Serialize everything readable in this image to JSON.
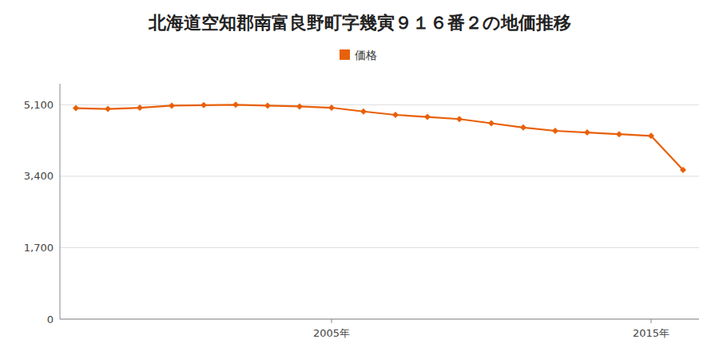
{
  "chart_data": {
    "type": "line",
    "title": "北海道空知郡南富良野町字幾寅９１６番２の地価推移",
    "x": [
      1997,
      1998,
      1999,
      2000,
      2001,
      2002,
      2003,
      2004,
      2005,
      2006,
      2007,
      2008,
      2009,
      2010,
      2011,
      2012,
      2013,
      2014,
      2015,
      2016
    ],
    "series": [
      {
        "name": "価格",
        "color": "#e8600a",
        "marker": "diamond",
        "values": [
          5020,
          5000,
          5030,
          5080,
          5090,
          5100,
          5080,
          5060,
          5030,
          4940,
          4860,
          4810,
          4760,
          4660,
          4560,
          4480,
          4440,
          4400,
          4360,
          3550
        ]
      }
    ],
    "xlim": [
      1996.5,
      2016.5
    ],
    "xticks": [
      {
        "value": 2005,
        "label": "2005年"
      },
      {
        "value": 2015,
        "label": "2015年"
      }
    ],
    "ylim": [
      0,
      5600
    ],
    "yticks": [
      0,
      {
        "value": 1700,
        "label": "1,700"
      },
      {
        "value": 3400,
        "label": "3,400"
      },
      {
        "value": 5100,
        "label": "5,100"
      }
    ],
    "grid": true,
    "legend": "top"
  }
}
